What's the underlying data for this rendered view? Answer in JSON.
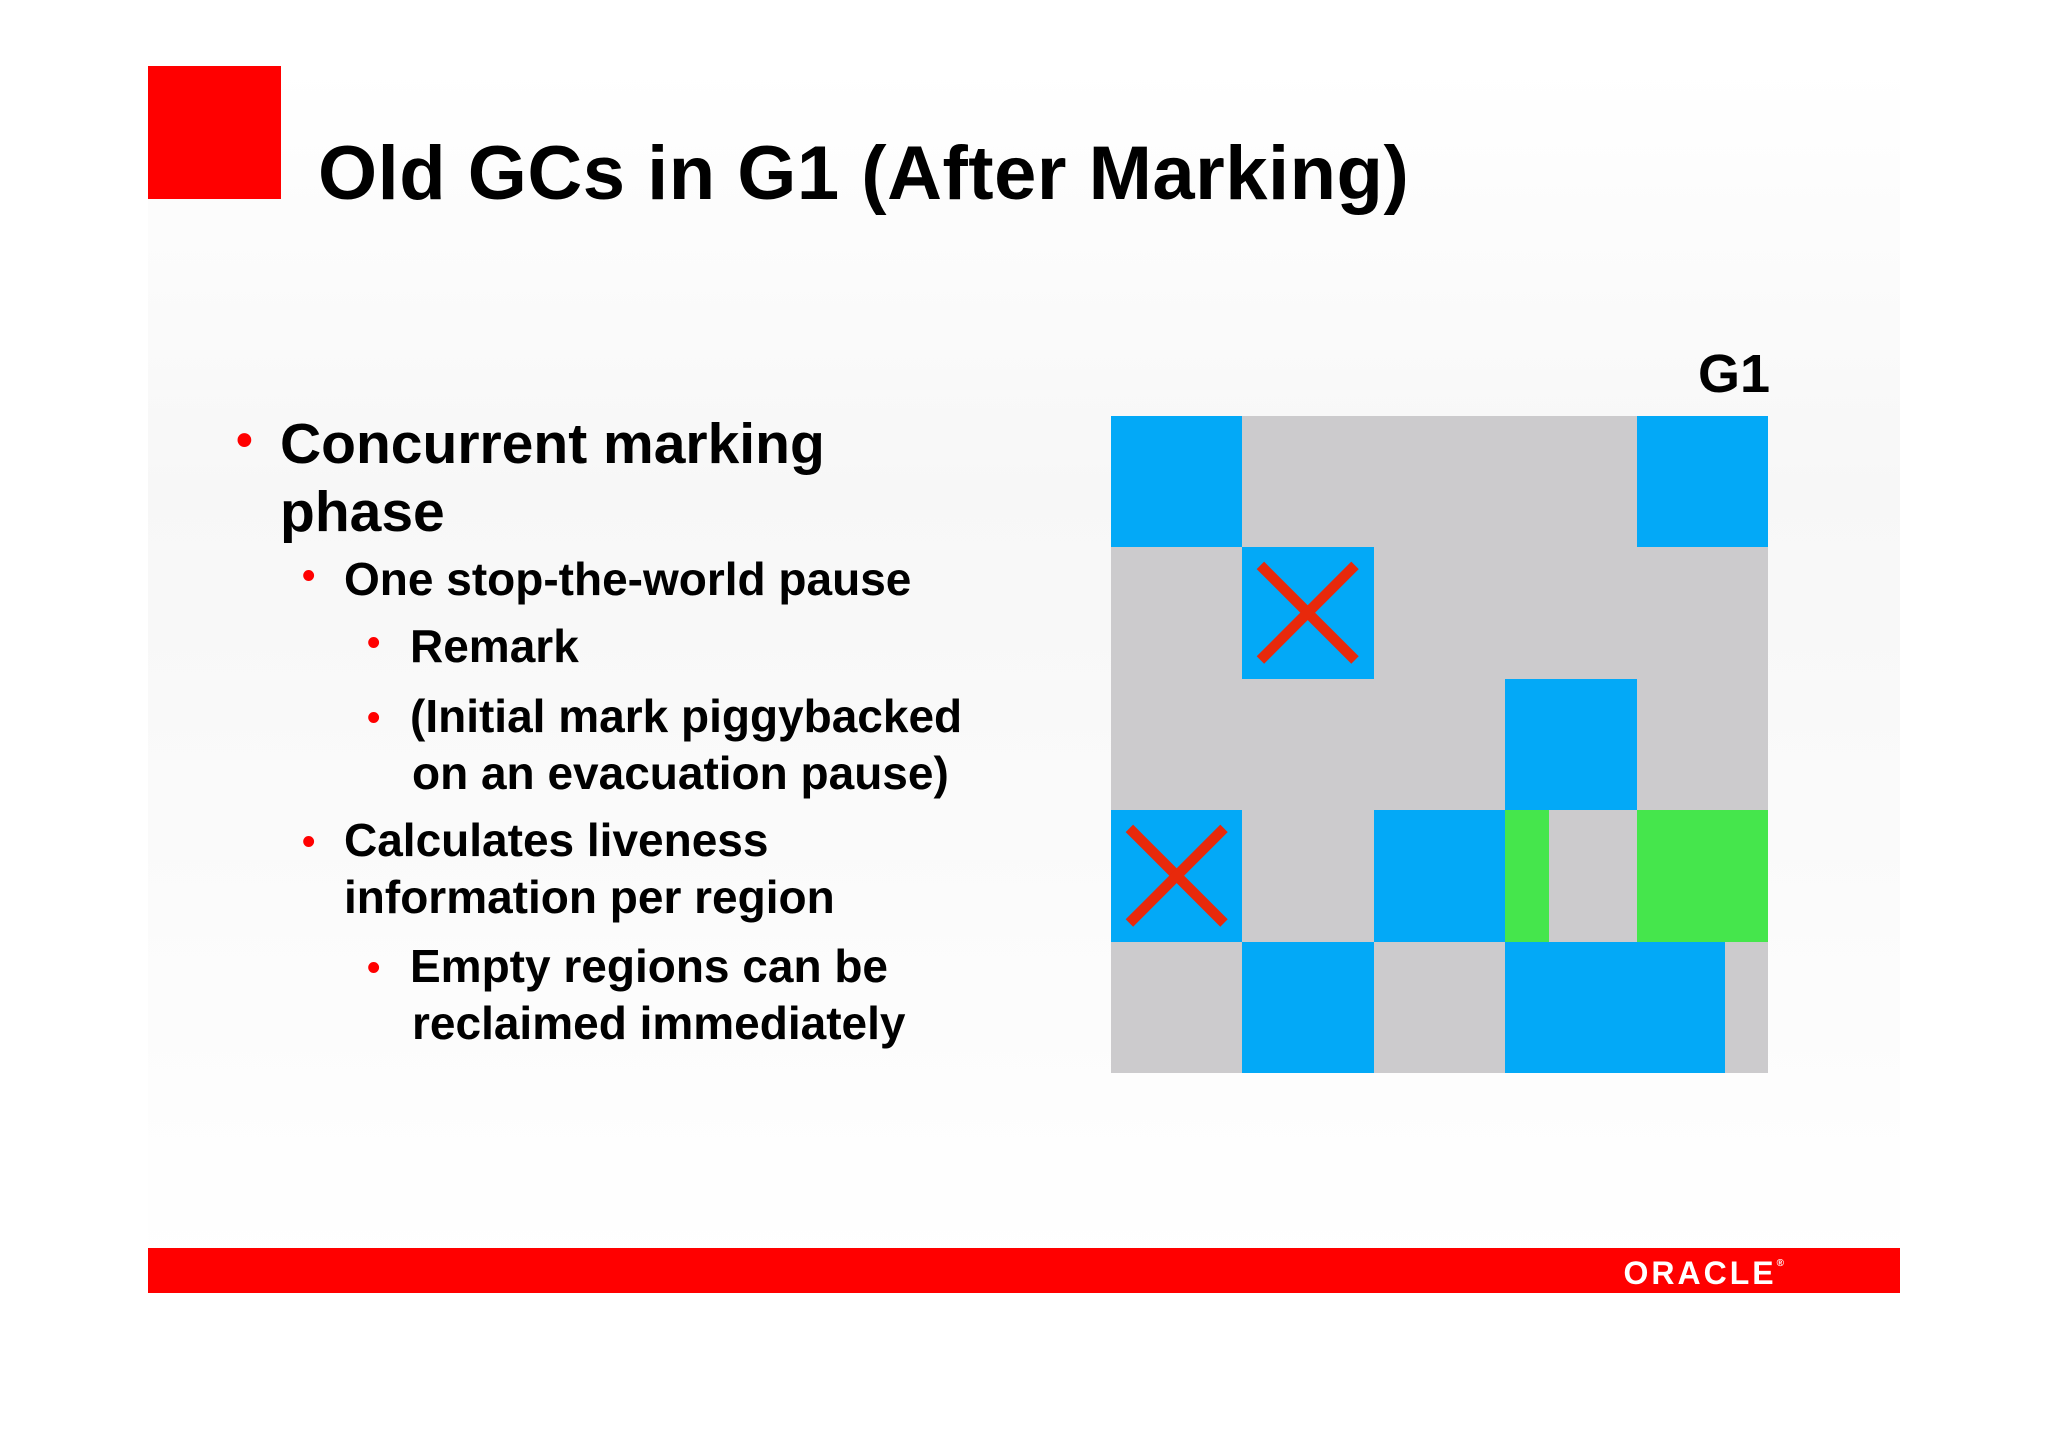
{
  "slide": {
    "title": "Old GCs in G1 (After Marking)"
  },
  "bullets": [
    {
      "level": 1,
      "lines": [
        "Concurrent marking",
        "phase"
      ]
    },
    {
      "level": 2,
      "lines": [
        "One stop-the-world pause"
      ]
    },
    {
      "level": 3,
      "lines": [
        "Remark"
      ]
    },
    {
      "level": 3,
      "lines": [
        "(Initial mark piggybacked",
        "on an evacuation pause)"
      ]
    },
    {
      "level": 2,
      "lines": [
        "Calculates liveness",
        "information per region"
      ]
    },
    {
      "level": 3,
      "lines": [
        "Empty regions can be",
        "reclaimed immediately"
      ]
    }
  ],
  "bullet_glyph": "•",
  "diagram": {
    "label": "G1",
    "rows": 5,
    "cols": 5,
    "regions": [
      {
        "row": 0,
        "col": 0,
        "kind": "old"
      },
      {
        "row": 0,
        "col": 4,
        "kind": "old"
      },
      {
        "row": 1,
        "col": 1,
        "kind": "old",
        "reclaimed": true
      },
      {
        "row": 2,
        "col": 3,
        "kind": "old"
      },
      {
        "row": 3,
        "col": 0,
        "kind": "old",
        "reclaimed": true
      },
      {
        "row": 3,
        "col": 2,
        "kind": "old"
      },
      {
        "row": 3,
        "col": 3,
        "kind": "young",
        "fill": 0.33
      },
      {
        "row": 3,
        "col": 4,
        "kind": "young",
        "fill": 1.0
      },
      {
        "row": 4,
        "col": 1,
        "kind": "old"
      },
      {
        "row": 4,
        "col": 3,
        "kind": "old"
      },
      {
        "row": 4,
        "col": 4,
        "kind": "old",
        "fill": 0.67
      }
    ]
  },
  "footer": {
    "logo": "ORACLE",
    "logo_mark": "®"
  },
  "colors": {
    "accent": "#ff0000",
    "free": "#cccbcd",
    "old": "#03a9f7",
    "young": "#45e64c",
    "cross": "#e8290b"
  }
}
